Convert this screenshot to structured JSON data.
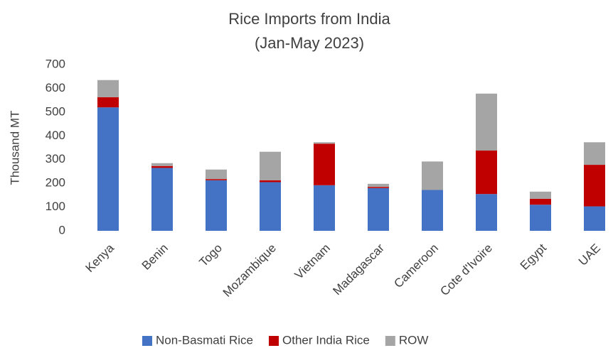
{
  "chart_data": {
    "type": "stacked_bar",
    "title": "Rice Imports from India",
    "subtitle": "(Jan-May 2023)",
    "y_label": "Thousand MT",
    "categories": [
      "Kenya",
      "Benin",
      "Togo",
      "Mozambique",
      "Vietnam",
      "Madagascar",
      "Cameroon",
      "Cote d'Ivoire",
      "Egypt",
      "UAE"
    ],
    "series": [
      {
        "name": "Non-Basmati Rice",
        "color": "#4472c4",
        "values": [
          520,
          265,
          213,
          205,
          192,
          180,
          172,
          155,
          110,
          103
        ]
      },
      {
        "name": "Other India Rice",
        "color": "#c00000",
        "values": [
          43,
          8,
          5,
          8,
          175,
          5,
          0,
          183,
          25,
          175
        ]
      },
      {
        "name": "ROW",
        "color": "#a5a5a5",
        "values": [
          72,
          12,
          40,
          120,
          6,
          13,
          120,
          240,
          30,
          95
        ]
      }
    ],
    "ylim": [
      0,
      700
    ],
    "yticks": [
      0,
      100,
      200,
      300,
      400,
      500,
      600,
      700
    ],
    "grid": false,
    "legend": "bottom"
  }
}
